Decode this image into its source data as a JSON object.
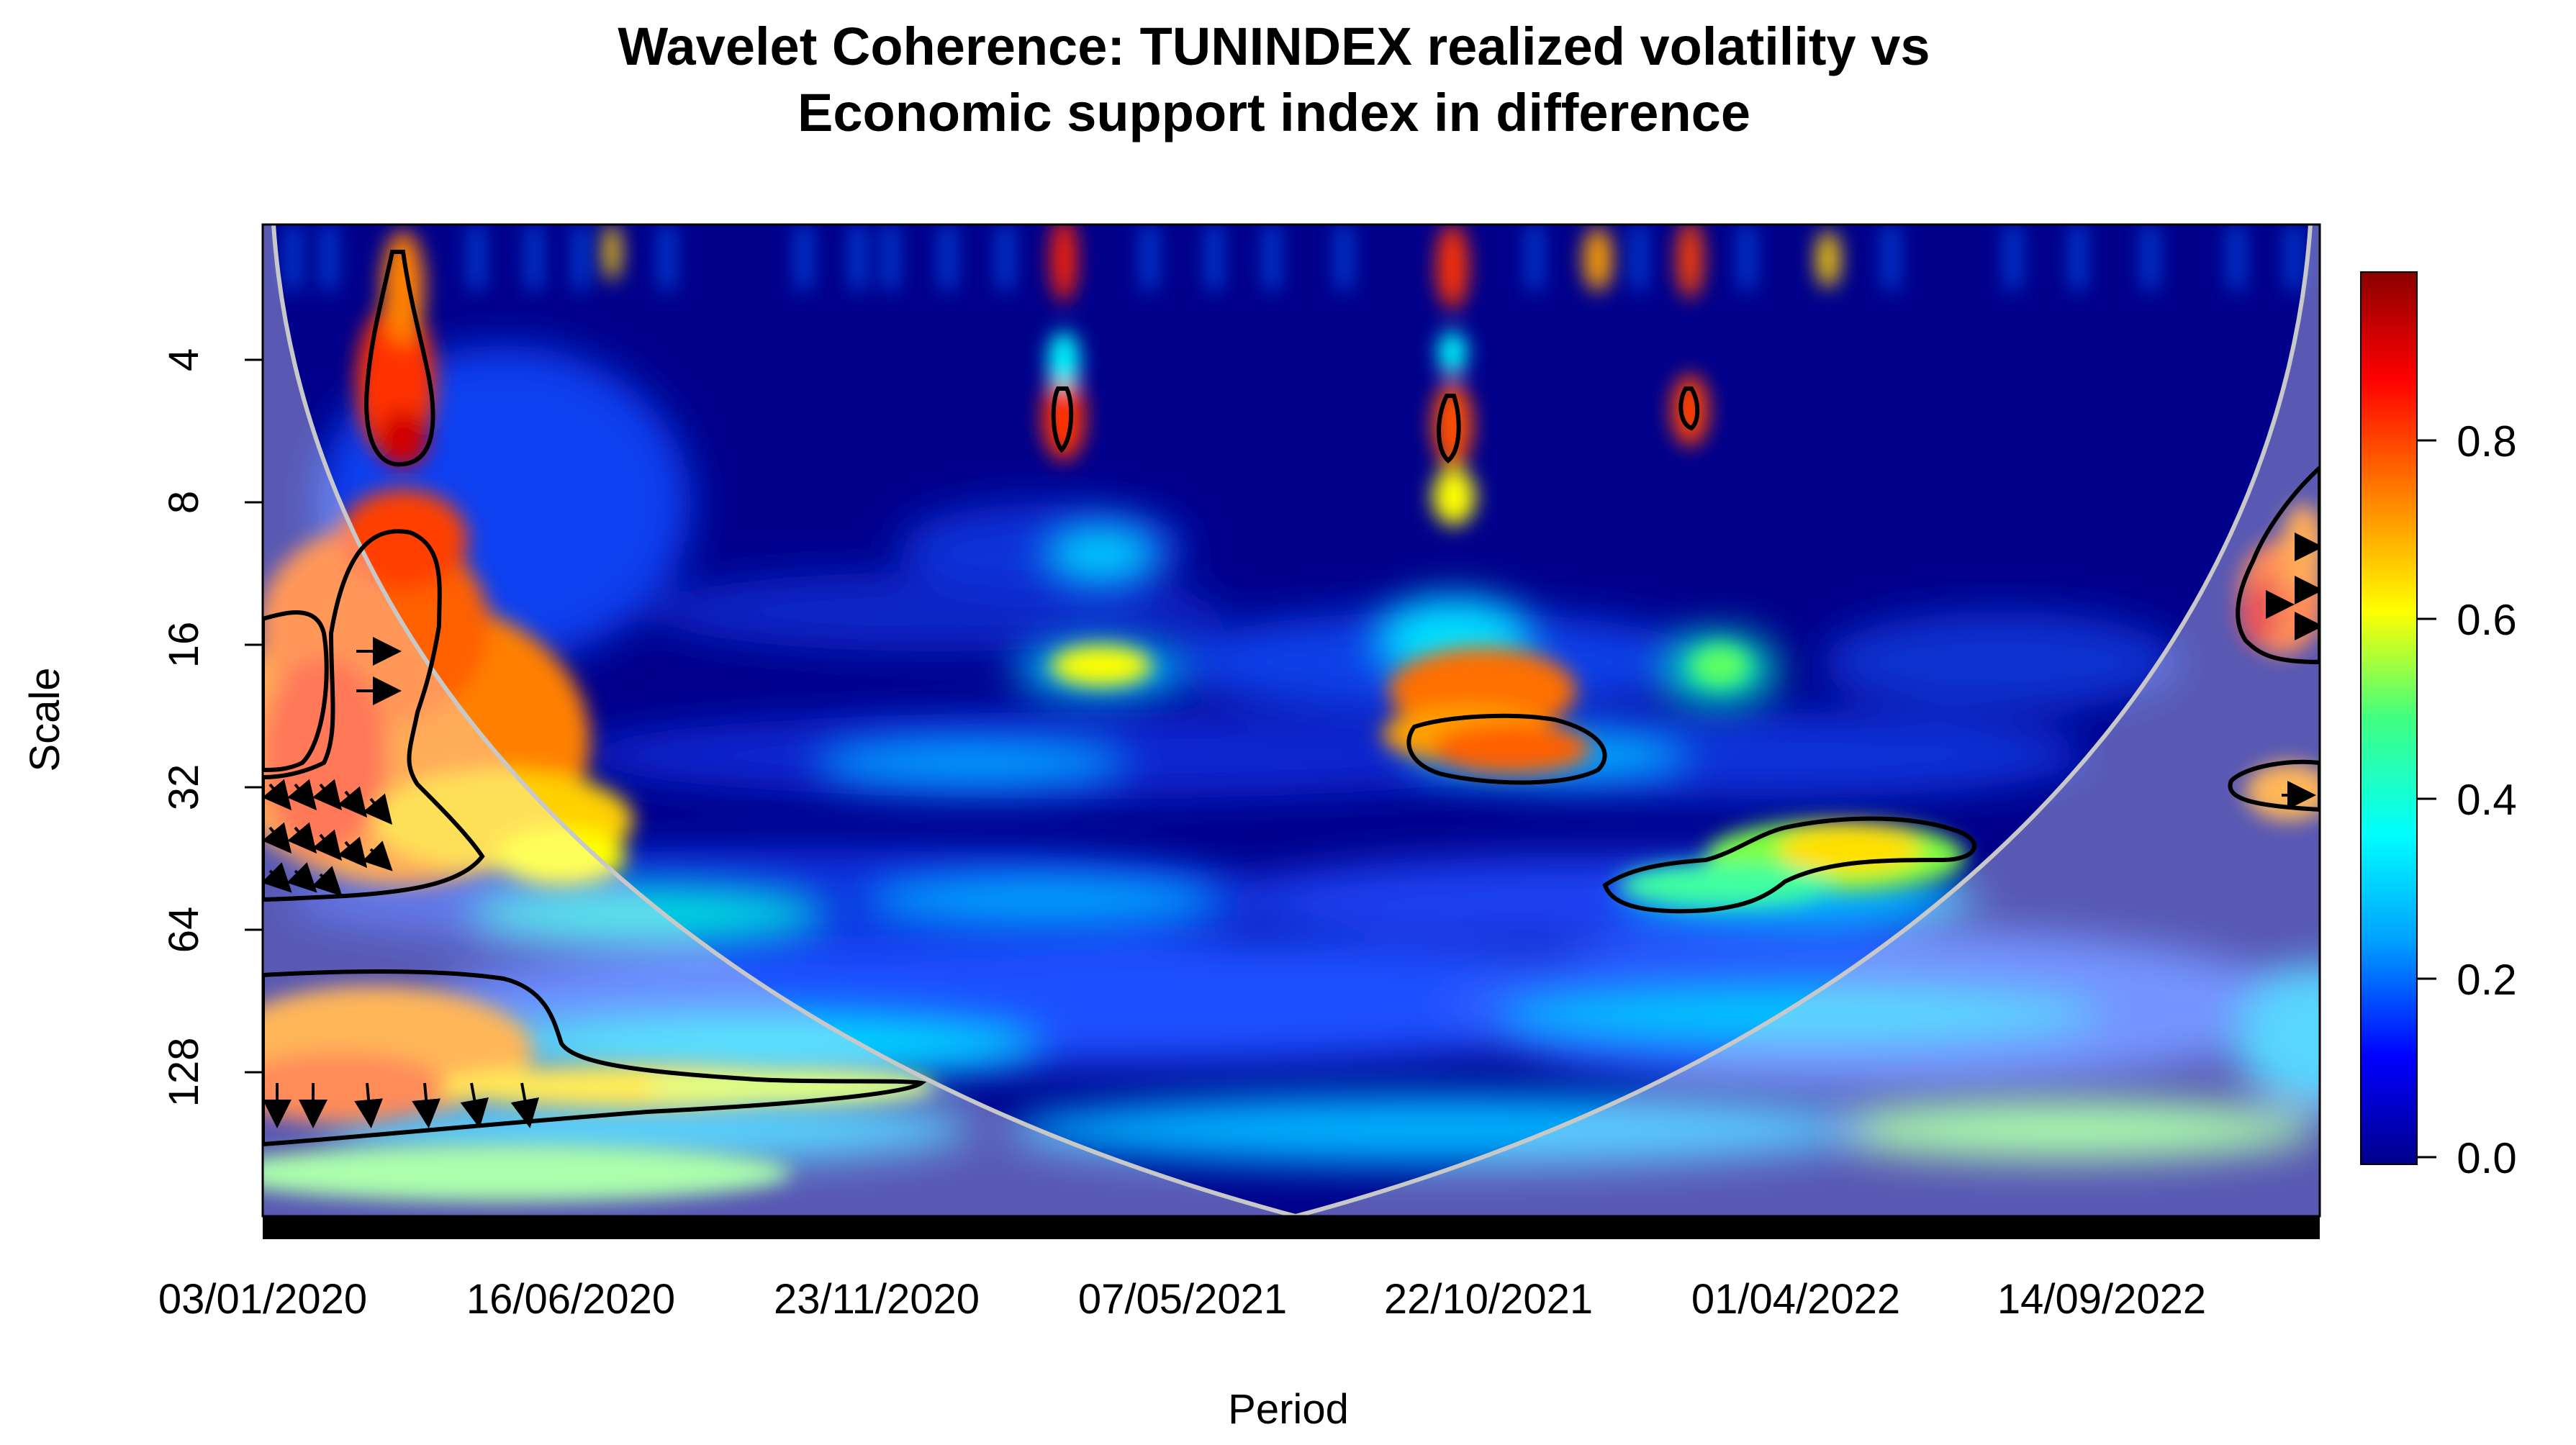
{
  "chart_data": {
    "type": "heatmap",
    "title": [
      "Wavelet Coherence: TUNINDEX realized volatility vs",
      "Economic support index in difference"
    ],
    "xlabel": "Period",
    "ylabel": "Scale",
    "x_tick_labels": [
      "03/01/2020",
      "16/06/2020",
      "23/11/2020",
      "07/05/2021",
      "22/10/2021",
      "01/04/2022",
      "14/09/2022"
    ],
    "y_tick_labels": [
      "4",
      "8",
      "16",
      "32",
      "64",
      "128"
    ],
    "y_scale": "log2",
    "y_range": [
      2,
      256
    ],
    "colorbar_ticks": [
      "0.0",
      "0.2",
      "0.4",
      "0.6",
      "0.8"
    ],
    "colorbar_range": [
      0,
      1
    ],
    "colormap": [
      "#00008b",
      "#0000ff",
      "#00a0ff",
      "#00ffff",
      "#40ff80",
      "#ffff00",
      "#ff8000",
      "#ff0000",
      "#8b0000"
    ],
    "high_coherence_regions": [
      {
        "period": "early 2020",
        "scale": "4-8",
        "coherence": 0.95
      },
      {
        "period": "early 2020",
        "scale": "8-48",
        "coherence": 0.85
      },
      {
        "period": "early 2020",
        "scale": "80-200",
        "coherence": 0.8
      },
      {
        "period": "mid 2021",
        "scale": "4-8",
        "coherence": 0.9
      },
      {
        "period": "late 2021",
        "scale": "20-32",
        "coherence": 0.85
      },
      {
        "period": "early 2022",
        "scale": "4-8",
        "coherence": 0.9
      },
      {
        "period": "2022",
        "scale": "40-56",
        "coherence": 0.7
      },
      {
        "period": "late 2022",
        "scale": "10-20",
        "coherence": 0.9
      },
      {
        "period": "late 2022",
        "scale": "28-36",
        "coherence": 0.7
      }
    ]
  }
}
